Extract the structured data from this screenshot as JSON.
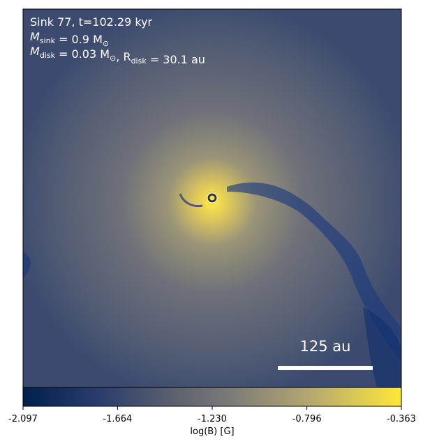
{
  "chart_data": {
    "type": "image",
    "annotation_lines": [
      [
        {
          "text": "Sink 77, t=102.29 kyr"
        }
      ],
      [
        {
          "text": "M"
        },
        {
          "sub": "sink"
        },
        {
          "text": " = 0.9 M"
        },
        {
          "sub": "⊙"
        }
      ],
      [
        {
          "text": "M"
        },
        {
          "sub": "disk"
        },
        {
          "text": " = 0.03 M"
        },
        {
          "sub": "⊙"
        },
        {
          "text": ", R"
        },
        {
          "sub": "disk"
        },
        {
          "text": " = 30.1 au"
        }
      ]
    ],
    "scale_bar_label": "125 au",
    "colorbar": {
      "label": "log(B) [G]",
      "colormap": "cividis",
      "lim": [
        -2.097,
        -0.363
      ],
      "ticks": [
        -2.097,
        -1.664,
        {
          "value": -1.23,
          "label": "-1.230"
        },
        -0.796,
        -0.363
      ]
    }
  }
}
